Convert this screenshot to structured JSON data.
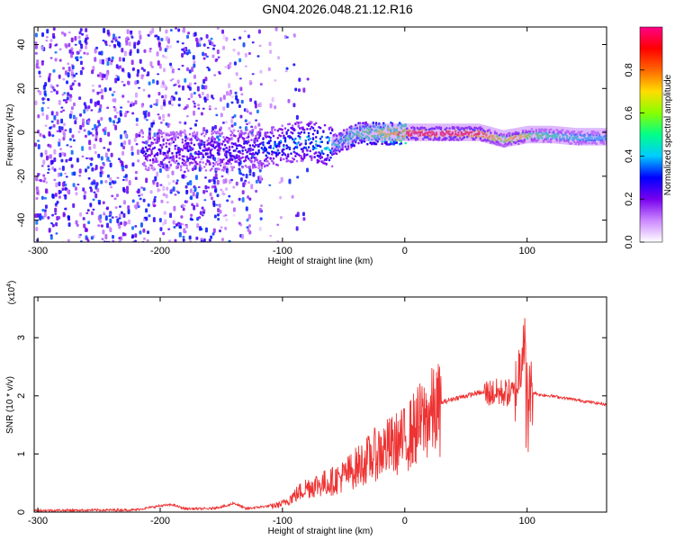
{
  "title": "GN04.2026.048.21.12.R16",
  "chart_data": [
    {
      "type": "heatmap",
      "xlabel": "Height of straight line (km)",
      "ylabel": "Frequency (Hz)",
      "xlim": [
        -303,
        165
      ],
      "ylim": [
        -50,
        48
      ],
      "x_ticks": [
        -300,
        -200,
        -100,
        0,
        100
      ],
      "y_ticks": [
        -40,
        -20,
        0,
        20,
        40
      ],
      "colorbar": {
        "label": "Normalized spectral amplitude",
        "range": [
          0.0,
          1.0
        ],
        "ticks": [
          0.0,
          0.2,
          0.4,
          0.6,
          0.8
        ],
        "colors": [
          "#ffffff",
          "#cc88ff",
          "#7700ee",
          "#0000ff",
          "#00ccff",
          "#00ff88",
          "#88ff00",
          "#ffdd00",
          "#ff6600",
          "#ff0000",
          "#ff0088"
        ]
      },
      "ridge": {
        "x": [
          -150,
          -120,
          -100,
          -80,
          -60,
          -40,
          -20,
          0,
          20,
          40,
          60,
          80,
          90,
          100,
          120,
          140,
          165
        ],
        "frequency": [
          -8,
          -7,
          -5,
          -3,
          -6,
          0,
          0,
          0,
          0,
          0,
          0,
          -3,
          -2,
          -1,
          -1,
          -2,
          -2
        ],
        "amplitude": [
          0.3,
          0.35,
          0.4,
          0.45,
          0.5,
          0.6,
          0.75,
          0.95,
          0.95,
          0.95,
          0.9,
          0.6,
          0.8,
          0.6,
          0.5,
          0.45,
          0.4
        ]
      }
    },
    {
      "type": "line",
      "xlabel": "Height of straight line (km)",
      "ylabel": "SNR (10 * v/v)",
      "y_multiplier": "(x10",
      "y_multiplier_exp": "4",
      "y_multiplier_close": ")",
      "xlim": [
        -303,
        165
      ],
      "ylim": [
        0,
        3.7
      ],
      "x_ticks": [
        -300,
        -200,
        -100,
        0,
        100
      ],
      "y_ticks": [
        0,
        1,
        2,
        3
      ],
      "color": "#ee3333",
      "series_envelope": {
        "x": [
          -303,
          -220,
          -200,
          -190,
          -180,
          -160,
          -145,
          -140,
          -130,
          -110,
          -100,
          -90,
          -80,
          -70,
          -60,
          -50,
          -40,
          -30,
          -20,
          -10,
          0,
          10,
          20,
          30,
          40,
          50,
          60,
          70,
          80,
          90,
          95,
          97,
          100,
          110,
          120,
          140,
          165
        ],
        "y": [
          0.02,
          0.03,
          0.1,
          0.12,
          0.05,
          0.05,
          0.1,
          0.15,
          0.05,
          0.1,
          0.15,
          0.3,
          0.45,
          0.5,
          0.55,
          0.65,
          0.8,
          0.95,
          1.1,
          1.2,
          1.3,
          1.55,
          1.75,
          1.88,
          1.95,
          2.0,
          2.05,
          2.05,
          2.05,
          2.05,
          2.6,
          3.2,
          2.1,
          2.02,
          2.0,
          1.93,
          1.85
        ]
      }
    }
  ]
}
